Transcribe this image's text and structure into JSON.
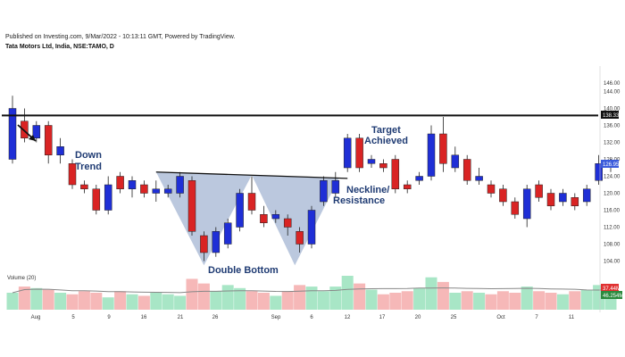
{
  "header": {
    "published": "Published on Investing.com, 9/Mar/2022 - 10:13:11 GMT, Powered by TradingView.",
    "symbol": "Tata Motors Ltd, India, NSE:TAMO, D"
  },
  "annotations": {
    "down_trend_1": "Down",
    "down_trend_2": "Trend",
    "target_1": "Target",
    "target_2": "Achieved",
    "neckline_1": "Neckline/",
    "neckline_2": "Resistance",
    "double_bottom": "Double Bottom"
  },
  "volume_label": "Volume (20)",
  "colors": {
    "up": "#1f2fd6",
    "down": "#d92424",
    "vol_up": "#a8e6c6",
    "vol_down": "#f6b8b8",
    "pattern_fill": "#8ea3c8",
    "badge_price": "#3b5bdb",
    "badge_target": "#111111",
    "badge_vol_red": "#e03131",
    "badge_vol_green": "#2b8a3e"
  },
  "chart_data": {
    "type": "candlestick",
    "y_ticks": [
      "146.00",
      "144.00",
      "140.00",
      "136.00",
      "132.00",
      "128.00",
      "124.00",
      "120.00",
      "116.00",
      "112.00",
      "108.00",
      "104.00"
    ],
    "x_ticks": [
      "Aug",
      "5",
      "9",
      "16",
      "21",
      "26",
      "Sep",
      "6",
      "12",
      "17",
      "20",
      "25",
      "Oct",
      "7",
      "11"
    ],
    "right_axis_badges": {
      "target": "138.33",
      "last_price": "126.95",
      "vol_red": "37.44M",
      "vol_green": "46.254M"
    },
    "ylim": [
      102,
      150
    ],
    "target_level": 138.33,
    "neckline": {
      "from": 125.0,
      "to": 123.5
    },
    "candles": [
      {
        "o": 128,
        "c": 140,
        "h": 143,
        "l": 127,
        "up": true
      },
      {
        "o": 137,
        "c": 133,
        "h": 140,
        "l": 132,
        "up": false
      },
      {
        "o": 133,
        "c": 136,
        "h": 137,
        "l": 132,
        "up": true
      },
      {
        "o": 136,
        "c": 129,
        "h": 137,
        "l": 127,
        "up": false
      },
      {
        "o": 129,
        "c": 131,
        "h": 133,
        "l": 127,
        "up": true
      },
      {
        "o": 127,
        "c": 122,
        "h": 128,
        "l": 121,
        "up": false
      },
      {
        "o": 122,
        "c": 121,
        "h": 123,
        "l": 120,
        "up": false
      },
      {
        "o": 121,
        "c": 116,
        "h": 122,
        "l": 115,
        "up": false
      },
      {
        "o": 116,
        "c": 122,
        "h": 124,
        "l": 115,
        "up": true
      },
      {
        "o": 124,
        "c": 121,
        "h": 125,
        "l": 120,
        "up": false
      },
      {
        "o": 121,
        "c": 123,
        "h": 124,
        "l": 119,
        "up": true
      },
      {
        "o": 122,
        "c": 120,
        "h": 123,
        "l": 119,
        "up": false
      },
      {
        "o": 120,
        "c": 121,
        "h": 123,
        "l": 118,
        "up": true
      },
      {
        "o": 120,
        "c": 121,
        "h": 122,
        "l": 119,
        "up": true
      },
      {
        "o": 120,
        "c": 124,
        "h": 125,
        "l": 119,
        "up": true
      },
      {
        "o": 123,
        "c": 111,
        "h": 124,
        "l": 110,
        "up": false
      },
      {
        "o": 110,
        "c": 106,
        "h": 111,
        "l": 104,
        "up": false
      },
      {
        "o": 106,
        "c": 111,
        "h": 112,
        "l": 105,
        "up": true
      },
      {
        "o": 108,
        "c": 113,
        "h": 114,
        "l": 107,
        "up": true
      },
      {
        "o": 112,
        "c": 120,
        "h": 121,
        "l": 111,
        "up": true
      },
      {
        "o": 120,
        "c": 116,
        "h": 124,
        "l": 115,
        "up": false
      },
      {
        "o": 115,
        "c": 113,
        "h": 117,
        "l": 112,
        "up": false
      },
      {
        "o": 114,
        "c": 115,
        "h": 116,
        "l": 113,
        "up": true
      },
      {
        "o": 114,
        "c": 112,
        "h": 115,
        "l": 110,
        "up": false
      },
      {
        "o": 111,
        "c": 108,
        "h": 112,
        "l": 106,
        "up": false
      },
      {
        "o": 108,
        "c": 116,
        "h": 117,
        "l": 107,
        "up": true
      },
      {
        "o": 118,
        "c": 123,
        "h": 124,
        "l": 117,
        "up": true
      },
      {
        "o": 120,
        "c": 123,
        "h": 125,
        "l": 119,
        "up": true
      },
      {
        "o": 126,
        "c": 133,
        "h": 134,
        "l": 125,
        "up": true
      },
      {
        "o": 133,
        "c": 126,
        "h": 134,
        "l": 125,
        "up": false
      },
      {
        "o": 127,
        "c": 128,
        "h": 129,
        "l": 126,
        "up": true
      },
      {
        "o": 127,
        "c": 126,
        "h": 128,
        "l": 125,
        "up": false
      },
      {
        "o": 128,
        "c": 121,
        "h": 129,
        "l": 120,
        "up": false
      },
      {
        "o": 122,
        "c": 121,
        "h": 123,
        "l": 120,
        "up": false
      },
      {
        "o": 123,
        "c": 124,
        "h": 125,
        "l": 122,
        "up": true
      },
      {
        "o": 124,
        "c": 134,
        "h": 136,
        "l": 123,
        "up": true
      },
      {
        "o": 134,
        "c": 127,
        "h": 138,
        "l": 125,
        "up": false
      },
      {
        "o": 126,
        "c": 129,
        "h": 131,
        "l": 125,
        "up": true
      },
      {
        "o": 128,
        "c": 123,
        "h": 129,
        "l": 122,
        "up": false
      },
      {
        "o": 123,
        "c": 124,
        "h": 126,
        "l": 122,
        "up": true
      },
      {
        "o": 122,
        "c": 120,
        "h": 123,
        "l": 119,
        "up": false
      },
      {
        "o": 121,
        "c": 118,
        "h": 122,
        "l": 117,
        "up": false
      },
      {
        "o": 118,
        "c": 115,
        "h": 119,
        "l": 114,
        "up": false
      },
      {
        "o": 114,
        "c": 121,
        "h": 122,
        "l": 112,
        "up": true
      },
      {
        "o": 122,
        "c": 119,
        "h": 123,
        "l": 118,
        "up": false
      },
      {
        "o": 120,
        "c": 117,
        "h": 121,
        "l": 116,
        "up": false
      },
      {
        "o": 118,
        "c": 120,
        "h": 121,
        "l": 117,
        "up": true
      },
      {
        "o": 119,
        "c": 117,
        "h": 120,
        "l": 116,
        "up": false
      },
      {
        "o": 118,
        "c": 121,
        "h": 122,
        "l": 117,
        "up": true
      },
      {
        "o": 123,
        "c": 127,
        "h": 129,
        "l": 122,
        "up": true
      },
      {
        "o": 127,
        "c": 127,
        "h": 128,
        "l": 125,
        "up": true
      }
    ],
    "volume": [
      0.55,
      0.75,
      0.7,
      0.65,
      0.55,
      0.5,
      0.6,
      0.55,
      0.4,
      0.6,
      0.5,
      0.45,
      0.55,
      0.5,
      0.45,
      1.0,
      0.85,
      0.6,
      0.8,
      0.7,
      0.6,
      0.55,
      0.45,
      0.6,
      0.8,
      0.75,
      0.6,
      0.75,
      1.1,
      0.85,
      0.65,
      0.5,
      0.55,
      0.6,
      0.7,
      1.05,
      0.9,
      0.55,
      0.6,
      0.55,
      0.5,
      0.6,
      0.55,
      0.75,
      0.6,
      0.55,
      0.5,
      0.6,
      0.65,
      0.8,
      0.75
    ]
  }
}
